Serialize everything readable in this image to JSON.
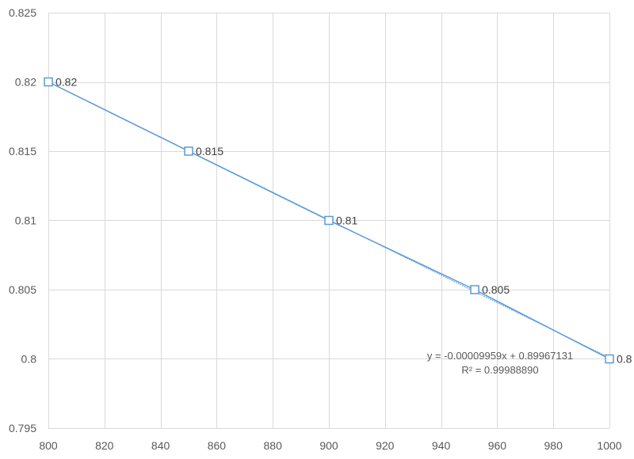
{
  "chart_data": {
    "type": "scatter",
    "title": "",
    "xlabel": "",
    "ylabel": "",
    "xlim": [
      800,
      1000
    ],
    "ylim": [
      0.795,
      0.825
    ],
    "x_ticks": [
      800,
      820,
      840,
      860,
      880,
      900,
      920,
      940,
      960,
      980,
      1000
    ],
    "y_ticks": [
      0.795,
      0.8,
      0.805,
      0.81,
      0.815,
      0.82,
      0.825
    ],
    "x_tick_labels": [
      "800",
      "820",
      "840",
      "860",
      "880",
      "900",
      "920",
      "940",
      "960",
      "980",
      "1000"
    ],
    "y_tick_labels": [
      "0.795",
      "0.8",
      "0.805",
      "0.81",
      "0.815",
      "0.82",
      "0.825"
    ],
    "grid": true,
    "series": [
      {
        "x": [
          800,
          850,
          900,
          952,
          1000
        ],
        "y": [
          0.82,
          0.815,
          0.81,
          0.805,
          0.8
        ],
        "labels": [
          "0.82",
          "0.815",
          "0.81",
          "0.805",
          "0.8"
        ],
        "marker": "square-hollow",
        "line": true,
        "color": "#5B9BD5"
      }
    ],
    "trendline": {
      "slope": -9.959e-05,
      "intercept": 0.89967131,
      "equation": "y = -0.00009959x + 0.89967131",
      "r_squared": "R² = 0.99988890"
    },
    "colors": {
      "series": "#5B9BD5",
      "grid": "#D9D9D9",
      "text": "#595959"
    }
  }
}
